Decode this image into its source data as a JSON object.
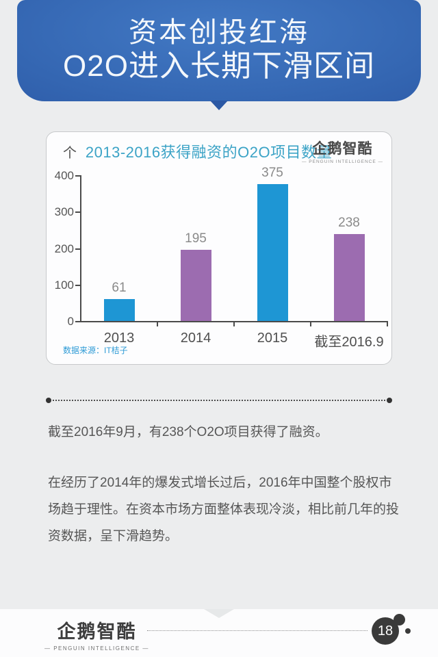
{
  "banner": {
    "title_line1": "资本创投红海",
    "title_line2": "O2O进入长期下滑区间"
  },
  "chart_card": {
    "unit_label": "个",
    "title": "2013-2016获得融资的O2O项目数量",
    "logo_text": "企鹅智酷",
    "logo_subtext": "— PENGUIN INTELLIGENCE —",
    "source_note": "数据来源：IT桔子"
  },
  "chart_data": {
    "type": "bar",
    "title": "2013-2016获得融资的O2O项目数量",
    "unit": "个",
    "categories": [
      "2013",
      "2014",
      "2015",
      "截至2016.9"
    ],
    "values": [
      61,
      195,
      375,
      238
    ],
    "bar_colors": [
      "#1e96d4",
      "#9c6cb0",
      "#1e96d4",
      "#9c6cb0"
    ],
    "value_label_color": "#8a8a8a",
    "ylim": [
      0,
      400
    ],
    "yticks": [
      0,
      100,
      200,
      300,
      400
    ],
    "grid": false,
    "legend_position": "none",
    "source": "数据来源：IT桔子"
  },
  "paragraphs": {
    "p1": "截至2016年9月，有238个O2O项目获得了融资。",
    "p2": "在经历了2014年的爆发式增长过后，2016年中国整个股权市场趋于理性。在资本市场方面整体表现冷淡，相比前几年的投资数据，呈下滑趋势。"
  },
  "footer": {
    "logo_text": "企鹅智酷",
    "logo_subtext": "— PENGUIN INTELLIGENCE —",
    "page_number": "18",
    "badge_color": "#3a3a3a"
  }
}
